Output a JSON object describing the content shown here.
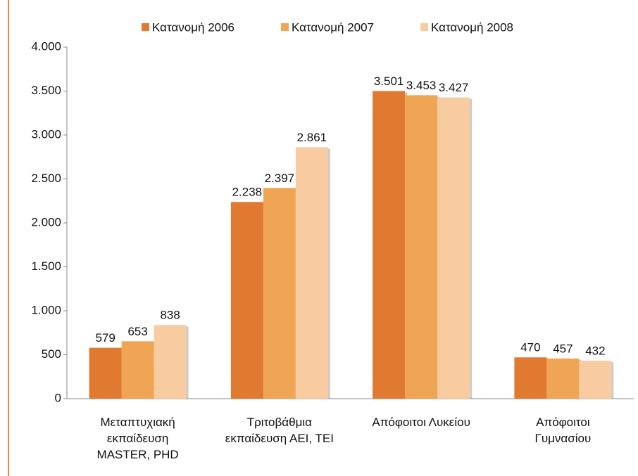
{
  "chart_data": {
    "type": "bar",
    "categories": [
      "Μεταπτυχιακή\nεκπαίδευση\nMASTER, PHD",
      "Τριτοβάθμια\nεκπαίδευση ΑΕΙ, ΤΕΙ",
      "Απόφοιτοι Λυκείου",
      "Απόφοιτοι\nΓυμνασίου"
    ],
    "series": [
      {
        "name": "Κατανομή 2006",
        "color": "#e07a30",
        "values": [
          579,
          2238,
          3501,
          470
        ],
        "value_labels": [
          "579",
          "2.238",
          "3.501",
          "470"
        ]
      },
      {
        "name": "Κατανομή 2007",
        "color": "#f0a555",
        "values": [
          653,
          2397,
          3453,
          457
        ],
        "value_labels": [
          "653",
          "2.397",
          "3.453",
          "457"
        ]
      },
      {
        "name": "Κατανομή 2008",
        "color": "#f8cca0",
        "values": [
          838,
          2861,
          3427,
          432
        ],
        "value_labels": [
          "838",
          "2.861",
          "3.427",
          "432"
        ]
      }
    ],
    "ylim": [
      0,
      4000
    ],
    "yticks": [
      0,
      500,
      {
        "value": 1000,
        "label": "1.000"
      },
      {
        "value": 1500,
        "label": "1.500"
      },
      {
        "value": 2000,
        "label": "2.000"
      },
      {
        "value": 2500,
        "label": "2.500"
      },
      {
        "value": 3000,
        "label": "3.000"
      },
      {
        "value": 3500,
        "label": "3.500"
      },
      {
        "value": 4000,
        "label": "4.000"
      }
    ],
    "legend": "top",
    "grid": false
  }
}
